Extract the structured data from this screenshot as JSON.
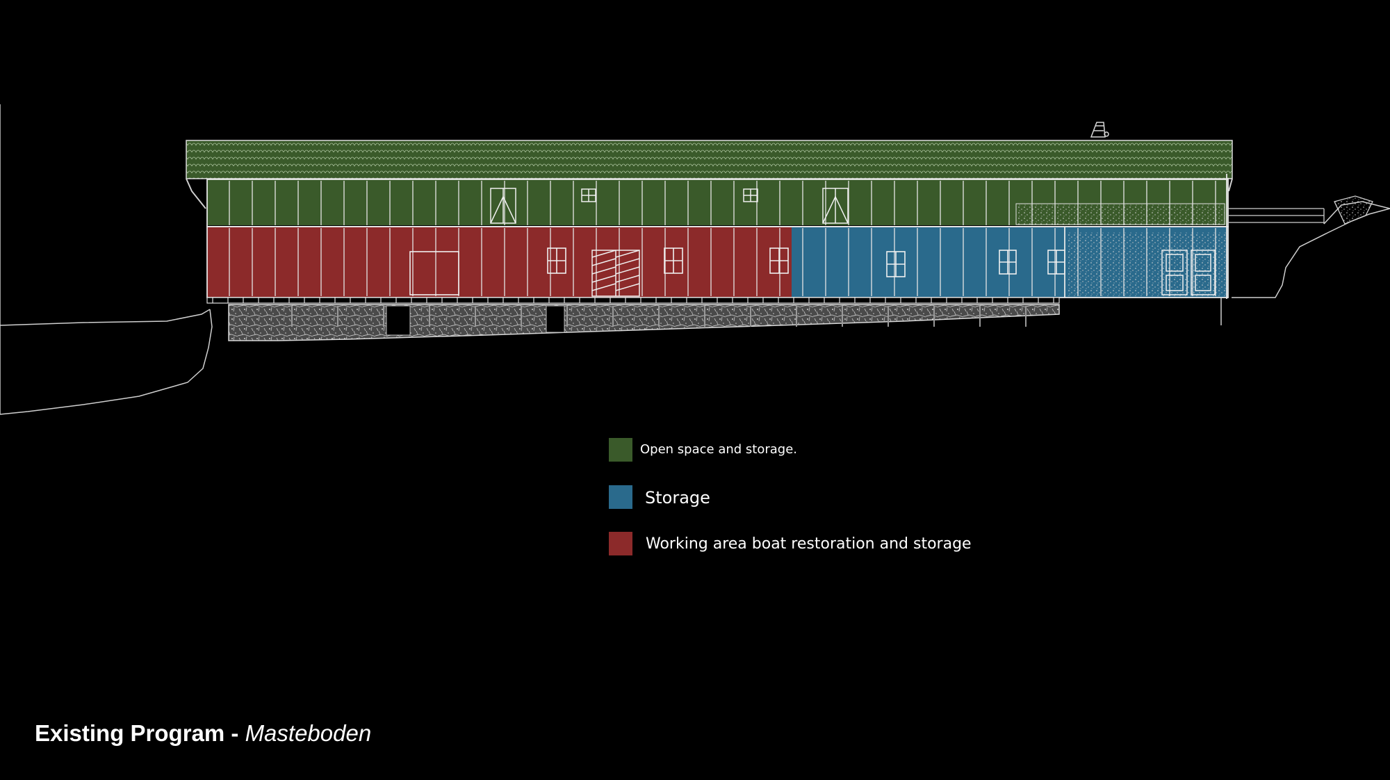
{
  "colors": {
    "background": "#000000",
    "open_space": "#3a5a2a",
    "storage": "#2a6a8c",
    "working_area": "#8c2a2a",
    "linework": "#e8e8e8"
  },
  "legend": [
    {
      "label": "Open space and storage.",
      "color": "#3a5a2a"
    },
    {
      "label": "Storage",
      "color": "#2a6a8c"
    },
    {
      "label": "Working area boat restoration and storage",
      "color": "#8c2a2a"
    }
  ],
  "title": {
    "main": "Existing Program - ",
    "sub": "Masteboden"
  }
}
